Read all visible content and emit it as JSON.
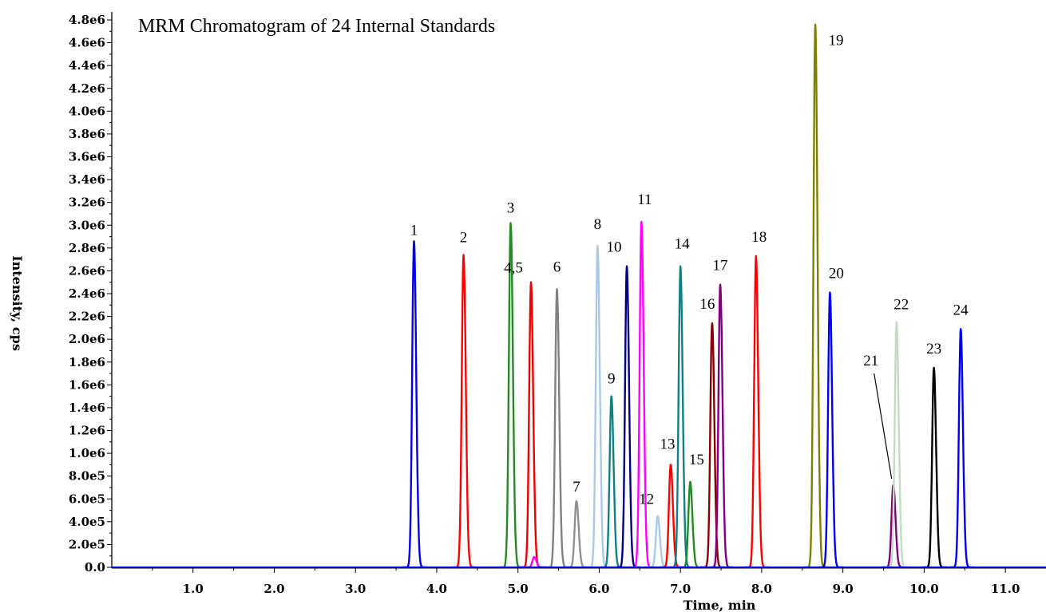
{
  "chart_data": {
    "type": "line",
    "title": "MRM Chromatogram of 24 Internal Standards",
    "xlabel": "Time, min",
    "ylabel": "Intensity, cps",
    "xlim": [
      0.0,
      11.5
    ],
    "ylim": [
      0,
      4800000
    ],
    "x_ticks": [
      "1.0",
      "2.0",
      "3.0",
      "4.0",
      "5.0",
      "6.0",
      "7.0",
      "8.0",
      "9.0",
      "10.0",
      "11.0"
    ],
    "x_tick_values": [
      1,
      2,
      3,
      4,
      5,
      6,
      7,
      8,
      9,
      10,
      11
    ],
    "y_ticks": [
      "0.0",
      "2.0e5",
      "4.0e5",
      "6.0e5",
      "8.0e5",
      "1.0e6",
      "1.2e6",
      "1.4e6",
      "1.6e6",
      "1.8e6",
      "2.0e6",
      "2.2e6",
      "2.4e6",
      "2.6e6",
      "2.8e6",
      "3.0e6",
      "3.2e6",
      "3.4e6",
      "3.6e6",
      "3.8e6",
      "4.0e6",
      "4.2e6",
      "4.4e6",
      "4.6e6",
      "4.8e6"
    ],
    "y_tick_values": [
      0,
      200000,
      400000,
      600000,
      800000,
      1000000,
      1200000,
      1400000,
      1600000,
      1800000,
      2000000,
      2200000,
      2400000,
      2600000,
      2800000,
      3000000,
      3200000,
      3400000,
      3600000,
      3800000,
      4000000,
      4200000,
      4400000,
      4600000,
      4800000
    ],
    "grid": false,
    "peaks": [
      {
        "label": "1",
        "rt": 3.72,
        "height": 2860000,
        "color": "#0000ee"
      },
      {
        "label": "2",
        "rt": 4.33,
        "height": 2740000,
        "color": "#ff0000"
      },
      {
        "label": "3",
        "rt": 4.91,
        "height": 3020000,
        "color": "#228b22"
      },
      {
        "label": "4,5",
        "rt": 5.16,
        "height": 2500000,
        "color": "#ee0000"
      },
      {
        "label": "",
        "rt": 5.2,
        "height": 90000,
        "color": "#ff00ff"
      },
      {
        "label": "6",
        "rt": 5.48,
        "height": 2440000,
        "color": "#808080"
      },
      {
        "label": "7",
        "rt": 5.72,
        "height": 580000,
        "color": "#909090"
      },
      {
        "label": "8",
        "rt": 5.98,
        "height": 2820000,
        "color": "#a9c8ea"
      },
      {
        "label": "9",
        "rt": 6.15,
        "height": 1500000,
        "color": "#108080"
      },
      {
        "label": "10",
        "rt": 6.34,
        "height": 2640000,
        "color": "#000080"
      },
      {
        "label": "11",
        "rt": 6.52,
        "height": 3030000,
        "color": "#ff00ff"
      },
      {
        "label": "12",
        "rt": 6.72,
        "height": 450000,
        "color": "#a9c8ea"
      },
      {
        "label": "13",
        "rt": 6.88,
        "height": 900000,
        "color": "#ff0000"
      },
      {
        "label": "14",
        "rt": 7.0,
        "height": 2640000,
        "color": "#108080"
      },
      {
        "label": "15",
        "rt": 7.12,
        "height": 750000,
        "color": "#228b22"
      },
      {
        "label": "16",
        "rt": 7.39,
        "height": 2140000,
        "color": "#8b0000"
      },
      {
        "label": "17",
        "rt": 7.49,
        "height": 2480000,
        "color": "#800080"
      },
      {
        "label": "18",
        "rt": 7.93,
        "height": 2730000,
        "color": "#ff0000"
      },
      {
        "label": "19",
        "rt": 8.66,
        "height": 4760000,
        "color": "#808000"
      },
      {
        "label": "20",
        "rt": 8.84,
        "height": 2410000,
        "color": "#0000ee"
      },
      {
        "label": "21",
        "rt": 9.62,
        "height": 720000,
        "color": "#800080"
      },
      {
        "label": "22",
        "rt": 9.66,
        "height": 2150000,
        "color": "#c1dcc1"
      },
      {
        "label": "23",
        "rt": 10.12,
        "height": 1750000,
        "color": "#000000"
      },
      {
        "label": "24",
        "rt": 10.45,
        "height": 2090000,
        "color": "#0000ee"
      }
    ]
  }
}
